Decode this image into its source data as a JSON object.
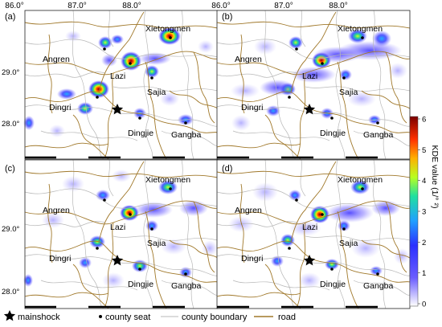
{
  "axes": {
    "x_ticks": [
      "86.0°",
      "87.0°",
      "88.0°"
    ],
    "y_ticks": [
      "29.0°",
      "28.0°"
    ]
  },
  "panels": [
    {
      "id": "a",
      "label": "(a)"
    },
    {
      "id": "b",
      "label": "(b)"
    },
    {
      "id": "c",
      "label": "(c)"
    },
    {
      "id": "d",
      "label": "(d)"
    }
  ],
  "places": {
    "xietongmen": "Xietongmen",
    "angren": "Angren",
    "lazi": "Lazi",
    "sajia": "Sajia",
    "dingri": "Dingri",
    "dingjie": "Dingjie",
    "gangba": "Gangba"
  },
  "colorbar": {
    "title": "KDE value (1/° ²)",
    "ticks": [
      "6",
      "5",
      "4",
      "3",
      "2",
      "1",
      "0"
    ],
    "value_range": [
      0,
      6
    ],
    "colors": [
      "#ffffff",
      "#2a1cff",
      "#2aa0ff",
      "#22e0a0",
      "#b8ff20",
      "#ffb000",
      "#ff4000",
      "#8a0000"
    ]
  },
  "legend": {
    "mainshock": "mainshock",
    "county_seat": "county seat",
    "county_boundary": "county boundary",
    "road": "road"
  },
  "colors": {
    "road": "#a0782a",
    "boundary": "#b8b8b8",
    "blob": "#6a5cff"
  }
}
